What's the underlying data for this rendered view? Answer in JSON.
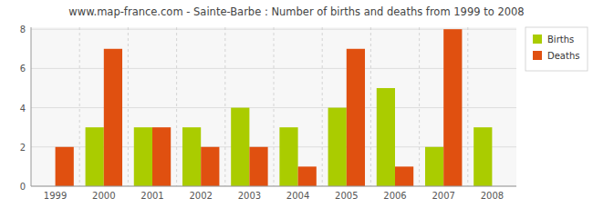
{
  "chart_data": {
    "type": "bar",
    "title": "www.map-france.com - Sainte-Barbe : Number of births and deaths from 1999 to 2008",
    "categories": [
      "1999",
      "2000",
      "2001",
      "2002",
      "2003",
      "2004",
      "2005",
      "2006",
      "2007",
      "2008"
    ],
    "series": [
      {
        "name": "Births",
        "color": "#aacc00",
        "values": [
          0,
          3,
          3,
          3,
          4,
          3,
          4,
          5,
          2,
          3
        ]
      },
      {
        "name": "Deaths",
        "color": "#e05010",
        "values": [
          2,
          7,
          3,
          2,
          2,
          1,
          7,
          1,
          8,
          0
        ]
      }
    ],
    "ylim": [
      0,
      8.1
    ],
    "yticks": [
      0,
      2,
      4,
      6,
      8
    ],
    "grid": true,
    "legend": "upper right"
  }
}
